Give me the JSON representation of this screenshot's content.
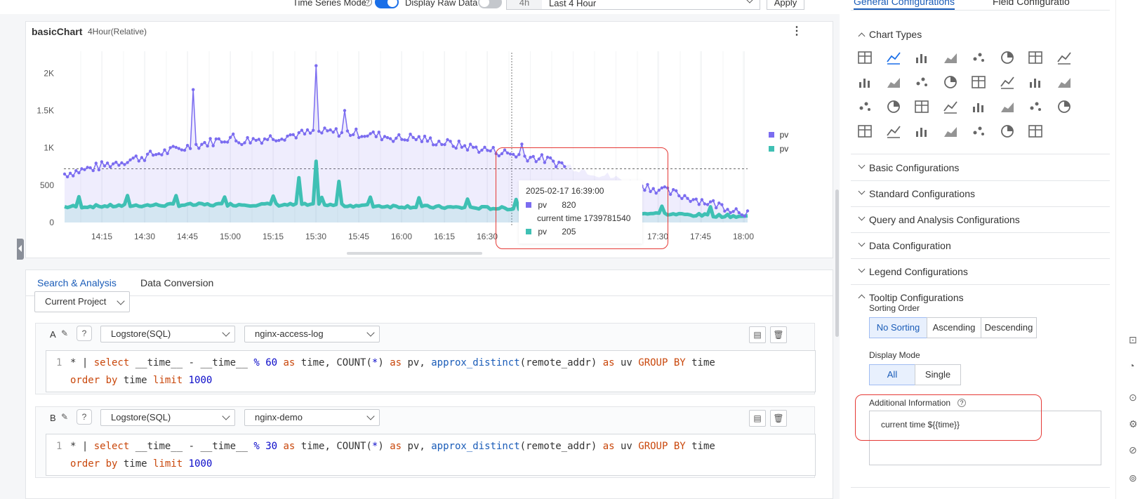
{
  "toolbar": {
    "time_series_mode_label": "Time Series Mode",
    "display_raw_data_label": "Display Raw Data",
    "time_short": "4h",
    "time_range": "Last 4 Hour",
    "apply_label": "Apply"
  },
  "chart_panel": {
    "title": "basicChart",
    "time_label": "4Hour(Relative)"
  },
  "chart_data": {
    "type": "area",
    "x_ticks": [
      "14:15",
      "14:30",
      "14:45",
      "15:00",
      "15:15",
      "15:30",
      "15:45",
      "16:00",
      "16:15",
      "16:30",
      "17:30",
      "17:45",
      "18:00"
    ],
    "y_ticks": [
      "0",
      "500",
      "1K",
      "1.5K",
      "2K"
    ],
    "ylim": [
      0,
      2200
    ],
    "legend": [
      "pv",
      "pv"
    ],
    "legend_position": "right",
    "grid": true,
    "colors": [
      "#7b6cf0",
      "#3fc0b4"
    ],
    "series": [
      {
        "name": "pv",
        "color": "#7b6cf0"
      },
      {
        "name": "pv",
        "color": "#3fc0b4"
      }
    ],
    "tooltip": {
      "time": "2025-02-17 16:39:00",
      "pv1_label": "pv",
      "pv1_value": "820",
      "extra": "current time 1739781540",
      "pv2_label": "pv",
      "pv2_value": "205"
    }
  },
  "lower": {
    "tabs": [
      "Search & Analysis",
      "Data Conversion"
    ],
    "project_select": "Current Project",
    "query_a": {
      "letter": "A",
      "logstore_type": "Logstore(SQL)",
      "logstore": "nginx-access-log",
      "line_no": "1",
      "p1": "* | ",
      "p2": "select",
      "p3": " __time__ - __time__ ",
      "p4": "%",
      "p5": " ",
      "p6": "60",
      "p7": " ",
      "p8": "as",
      "p9": " time, COUNT(",
      "p10": "*",
      "p11": ") ",
      "p12": "as",
      "p13": " pv, ",
      "p14": "approx_distinct",
      "p15": "(remote_addr) ",
      "p16": "as",
      "p17": " uv ",
      "p18": "GROUP BY",
      "p19": " time",
      "q1": "order by",
      "q2": " time ",
      "q3": "limit",
      "q4": " ",
      "q5": "1000"
    },
    "query_b": {
      "letter": "B",
      "logstore_type": "Logstore(SQL)",
      "logstore": "nginx-demo",
      "line_no": "1",
      "p1": "* | ",
      "p2": "select",
      "p3": " __time__ - __time__ ",
      "p4": "%",
      "p5": " ",
      "p6": "30",
      "p7": " ",
      "p8": "as",
      "p9": " time, COUNT(",
      "p10": "*",
      "p11": ") ",
      "p12": "as",
      "p13": " pv, ",
      "p14": "approx_distinct",
      "p15": "(remote_addr) ",
      "p16": "as",
      "p17": " uv ",
      "p18": "GROUP BY",
      "p19": " time",
      "q1": "order by",
      "q2": " time ",
      "q3": "limit",
      "q4": " ",
      "q5": "1000"
    }
  },
  "right_panel": {
    "tabs": [
      "General Configurations",
      "Field Configuratio"
    ],
    "chart_types_label": "Chart Types",
    "sections": [
      "Basic Configurations",
      "Standard Configurations",
      "Query and Analysis Configurations",
      "Data Configuration",
      "Legend Configurations",
      "Tooltip Configurations"
    ],
    "sorting_order_label": "Sorting Order",
    "sorting_options": [
      "No Sorting",
      "Ascending",
      "Descending"
    ],
    "display_mode_label": "Display Mode",
    "display_options": [
      "All",
      "Single"
    ],
    "additional_info_label": "Additional Information",
    "additional_info_value": "current time ${{time}}"
  }
}
